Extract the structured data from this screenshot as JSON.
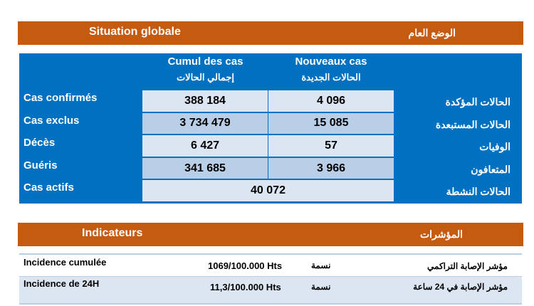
{
  "situation": {
    "title_fr": "Situation globale",
    "title_ar": "الوضع العام"
  },
  "table": {
    "headers": [
      {
        "fr": "Cumul  des cas",
        "ar": "إجمالي الحالات"
      },
      {
        "fr": "Nouveaux cas",
        "ar": "الحالات الجديدة"
      }
    ],
    "rows": [
      {
        "fr": "Cas confirmés",
        "ar": "الحالات المؤكدة",
        "cumul": "388 184",
        "new": "4 096"
      },
      {
        "fr": "Cas exclus",
        "ar": "الحالات المستبعدة",
        "cumul": "3 734 479",
        "new": "15 085"
      },
      {
        "fr": "Décès",
        "ar": "الوفيات",
        "cumul": "6 427",
        "new": "57"
      },
      {
        "fr": "Guéris",
        "ar": "المتعافون",
        "cumul": "341 685",
        "new": "3 966"
      }
    ],
    "active": {
      "fr": "Cas actifs",
      "ar": "الحالات النشطة",
      "value": "40 072"
    }
  },
  "indicators": {
    "title_fr": "Indicateurs",
    "title_ar": "المؤشرات",
    "rows": [
      {
        "fr": "Incidence cumulée",
        "value": "1069/100.000 Hts",
        "rate_ar": "نسمة",
        "ar": "مؤشر الإصابة التراكمي"
      },
      {
        "fr": "Incidence de 24H",
        "value": "11,3/100.000 Hts",
        "rate_ar": "نسمة",
        "ar": "مؤشر الإصابة في 24 ساعة"
      }
    ]
  },
  "colors": {
    "orange": "#c55a11",
    "blue": "#0070c0",
    "light": "#dce6f2",
    "mid": "#b9cfe8"
  }
}
